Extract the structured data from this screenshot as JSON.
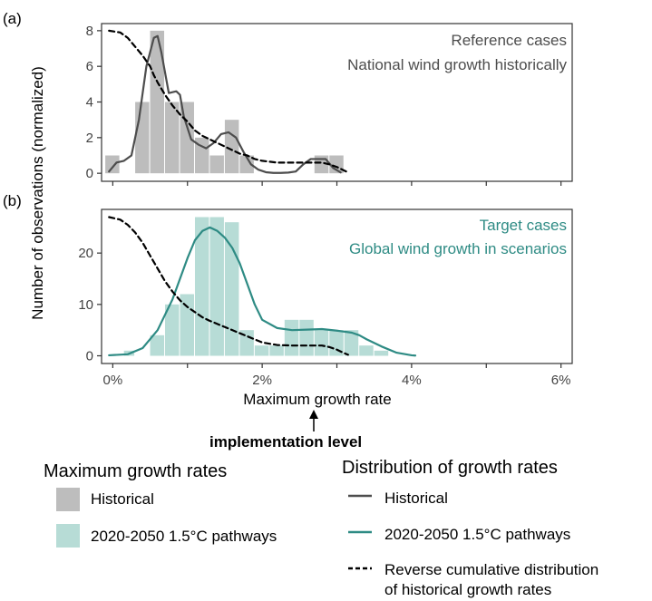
{
  "chart_data": [
    {
      "panel_label": "(a)",
      "type": "bar",
      "series": [
        {
          "name": "Historical",
          "type": "bar",
          "color": "#bdbdbd",
          "bins": [
            {
              "x0": -0.1,
              "x1": 0.1,
              "value": 1
            },
            {
              "x0": 0.1,
              "x1": 0.3,
              "value": 0
            },
            {
              "x0": 0.3,
              "x1": 0.5,
              "value": 4
            },
            {
              "x0": 0.5,
              "x1": 0.7,
              "value": 8
            },
            {
              "x0": 0.7,
              "x1": 0.9,
              "value": 4
            },
            {
              "x0": 0.9,
              "x1": 1.1,
              "value": 4
            },
            {
              "x0": 1.1,
              "x1": 1.3,
              "value": 2
            },
            {
              "x0": 1.3,
              "x1": 1.5,
              "value": 1
            },
            {
              "x0": 1.5,
              "x1": 1.7,
              "value": 3
            },
            {
              "x0": 1.7,
              "x1": 1.9,
              "value": 1
            },
            {
              "x0": 1.9,
              "x1": 2.1,
              "value": 0
            },
            {
              "x0": 2.1,
              "x1": 2.3,
              "value": 0
            },
            {
              "x0": 2.3,
              "x1": 2.5,
              "value": 0
            },
            {
              "x0": 2.5,
              "x1": 2.7,
              "value": 0
            },
            {
              "x0": 2.7,
              "x1": 2.9,
              "value": 1
            },
            {
              "x0": 2.9,
              "x1": 3.1,
              "value": 1
            }
          ]
        },
        {
          "name": "Historical",
          "type": "line",
          "color": "#4d4d4d",
          "x": [
            -0.05,
            0.05,
            0.15,
            0.25,
            0.35,
            0.45,
            0.55,
            0.6,
            0.65,
            0.75,
            0.85,
            0.9,
            0.95,
            1.05,
            1.15,
            1.25,
            1.35,
            1.45,
            1.55,
            1.65,
            1.75,
            1.85,
            1.95,
            2.05,
            2.15,
            2.25,
            2.35,
            2.45,
            2.55,
            2.65,
            2.75,
            2.85,
            2.95,
            3.05
          ],
          "y": [
            0.1,
            0.6,
            0.7,
            1.0,
            3.0,
            6.0,
            7.6,
            7.7,
            6.8,
            4.5,
            4.6,
            4.4,
            3.2,
            1.9,
            1.6,
            1.4,
            1.7,
            2.2,
            2.3,
            2.0,
            1.2,
            0.5,
            0.2,
            0.06,
            0.02,
            0.02,
            0.04,
            0.1,
            0.5,
            0.8,
            0.8,
            0.8,
            0.3,
            0.05
          ]
        },
        {
          "name": "Reverse cumulative distribution of historical growth rates",
          "type": "line",
          "color": "#000000",
          "dash": true,
          "x": [
            -0.05,
            0.1,
            0.2,
            0.3,
            0.4,
            0.5,
            0.55,
            0.6,
            0.7,
            0.8,
            0.9,
            1.0,
            1.1,
            1.2,
            1.3,
            1.4,
            1.5,
            1.6,
            1.7,
            1.8,
            1.9,
            2.0,
            2.2,
            2.4,
            2.6,
            2.8,
            2.9,
            3.0,
            3.1,
            3.15
          ],
          "y": [
            8.0,
            7.9,
            7.6,
            7.1,
            6.6,
            6.0,
            5.5,
            5.1,
            4.4,
            3.8,
            3.3,
            2.9,
            2.4,
            2.1,
            1.9,
            1.7,
            1.5,
            1.3,
            1.1,
            1.0,
            0.8,
            0.7,
            0.6,
            0.6,
            0.6,
            0.6,
            0.5,
            0.35,
            0.15,
            0.05
          ]
        }
      ],
      "xlim": [
        -0.15,
        6.15
      ],
      "ylim": [
        -0.45,
        8.4
      ],
      "xticks": [
        0,
        1,
        2,
        3,
        4,
        5,
        6
      ],
      "xtick_labels": [],
      "yticks": [
        0,
        2,
        4,
        6,
        8
      ],
      "ytick_labels": [
        "0",
        "2",
        "4",
        "6",
        "8"
      ],
      "annotation": [
        "Reference cases",
        "National wind growth historically"
      ],
      "annotation_color": "#4d4d4d"
    },
    {
      "panel_label": "(b)",
      "type": "bar",
      "series": [
        {
          "name": "2020-2050 1.5°C pathways",
          "type": "bar",
          "color": "#b7dcd6",
          "bins": [
            {
              "x0": 0.15,
              "x1": 0.3,
              "value": 1
            },
            {
              "x0": 0.3,
              "x1": 0.5,
              "value": 0
            },
            {
              "x0": 0.5,
              "x1": 0.7,
              "value": 4
            },
            {
              "x0": 0.7,
              "x1": 0.9,
              "value": 10
            },
            {
              "x0": 0.9,
              "x1": 1.1,
              "value": 12
            },
            {
              "x0": 1.1,
              "x1": 1.3,
              "value": 27
            },
            {
              "x0": 1.3,
              "x1": 1.5,
              "value": 27
            },
            {
              "x0": 1.5,
              "x1": 1.7,
              "value": 26
            },
            {
              "x0": 1.7,
              "x1": 1.9,
              "value": 5
            },
            {
              "x0": 1.9,
              "x1": 2.1,
              "value": 2
            },
            {
              "x0": 2.1,
              "x1": 2.3,
              "value": 2
            },
            {
              "x0": 2.3,
              "x1": 2.5,
              "value": 7
            },
            {
              "x0": 2.5,
              "x1": 2.7,
              "value": 7
            },
            {
              "x0": 2.7,
              "x1": 2.9,
              "value": 5
            },
            {
              "x0": 2.9,
              "x1": 3.1,
              "value": 5
            },
            {
              "x0": 3.1,
              "x1": 3.3,
              "value": 5
            },
            {
              "x0": 3.3,
              "x1": 3.5,
              "value": 2
            },
            {
              "x0": 3.5,
              "x1": 3.7,
              "value": 1
            }
          ]
        },
        {
          "name": "2020-2050 1.5°C pathways",
          "type": "line",
          "color": "#2e8b84",
          "x": [
            -0.05,
            0.2,
            0.4,
            0.6,
            0.8,
            0.9,
            1.0,
            1.1,
            1.2,
            1.3,
            1.4,
            1.5,
            1.6,
            1.7,
            1.8,
            1.9,
            2.0,
            2.2,
            2.4,
            2.6,
            2.8,
            3.0,
            3.2,
            3.3,
            3.4,
            3.6,
            3.8,
            4.0,
            4.05
          ],
          "y": [
            0.1,
            0.3,
            1.5,
            5.0,
            11.0,
            15.0,
            19.0,
            22.5,
            24.3,
            25.0,
            24.3,
            23.0,
            21.0,
            18.0,
            14.0,
            10.0,
            7.0,
            5.4,
            5.0,
            5.1,
            5.2,
            4.9,
            4.5,
            4.0,
            3.2,
            1.8,
            0.6,
            0.1,
            0.05
          ]
        },
        {
          "name": "Reverse cumulative distribution of historical growth rates",
          "type": "line",
          "color": "#000000",
          "dash": true,
          "x": [
            -0.05,
            0.1,
            0.2,
            0.3,
            0.4,
            0.5,
            0.6,
            0.7,
            0.8,
            0.9,
            1.0,
            1.1,
            1.2,
            1.3,
            1.4,
            1.5,
            1.6,
            1.7,
            1.8,
            1.9,
            2.0,
            2.2,
            2.4,
            2.6,
            2.8,
            2.9,
            3.0,
            3.1,
            3.15
          ],
          "y": [
            27.0,
            26.5,
            25.5,
            24.0,
            22.0,
            19.5,
            17.0,
            14.5,
            12.5,
            10.8,
            9.5,
            8.5,
            7.5,
            6.8,
            6.2,
            5.6,
            5.0,
            4.4,
            3.8,
            3.2,
            2.6,
            2.1,
            2.0,
            2.0,
            2.0,
            1.7,
            1.2,
            0.5,
            0.2
          ]
        }
      ],
      "xlim": [
        -0.15,
        6.15
      ],
      "ylim": [
        -1.5,
        28.5
      ],
      "xticks": [
        0,
        1,
        2,
        3,
        4,
        5,
        6
      ],
      "xtick_labels": [
        "0%",
        "",
        "2%",
        "",
        "4%",
        "",
        "6%"
      ],
      "yticks": [
        0,
        10,
        20
      ],
      "ytick_labels": [
        "0",
        "10",
        "20"
      ],
      "annotation": [
        "Target cases",
        "Global wind growth in scenarios"
      ],
      "annotation_color": "#2e8b84"
    }
  ],
  "axes": {
    "xlabel": "Maximum growth rate",
    "ylabel": "Number of observations (normalized)"
  },
  "implementation_label": "implementation level",
  "legend": {
    "bars_title": "Maximum growth rates",
    "bars": [
      {
        "label": "Historical",
        "color": "#bdbdbd"
      },
      {
        "label": "2020-2050 1.5°C pathways",
        "color": "#b7dcd6"
      }
    ],
    "lines_title": "Distribution of growth rates",
    "lines": [
      {
        "label": "Historical",
        "color": "#4d4d4d",
        "dash": false
      },
      {
        "label": "2020-2050 1.5°C pathways",
        "color": "#2e8b84",
        "dash": false
      },
      {
        "label": "Reverse cumulative distribution",
        "label2": "of historical growth rates",
        "color": "#000000",
        "dash": true
      }
    ]
  }
}
